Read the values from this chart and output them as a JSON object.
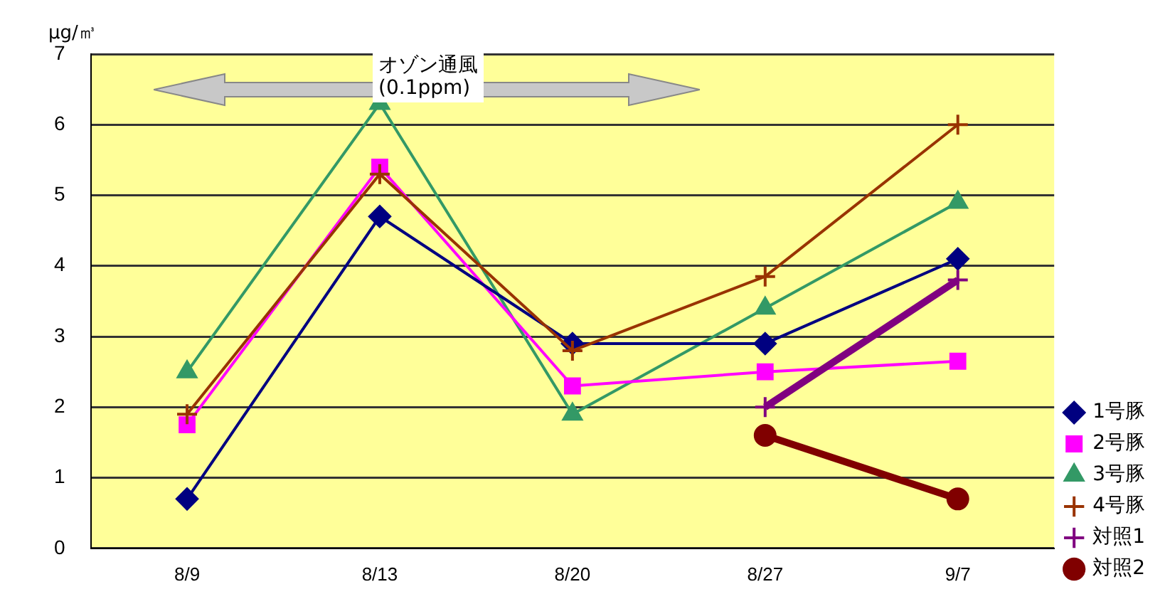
{
  "chart_data": {
    "type": "line",
    "ylabel": "μg/㎥",
    "annotations": [
      "オゾン通風\n(0.1ppm)"
    ],
    "categories": [
      "8/9",
      "8/13",
      "8/20",
      "8/27",
      "9/7"
    ],
    "ylim": [
      0,
      7
    ],
    "yticks": [
      0,
      1,
      2,
      3,
      4,
      5,
      6,
      7
    ],
    "grid": "y",
    "legend": "right",
    "series": [
      {
        "name": "1号豚",
        "color": "#000080",
        "marker": "diamond",
        "values": [
          0.7,
          4.7,
          2.9,
          2.9,
          4.1
        ]
      },
      {
        "name": "2号豚",
        "color": "#ff00ff",
        "marker": "square",
        "values": [
          1.75,
          5.4,
          2.3,
          2.5,
          2.65
        ]
      },
      {
        "name": "3号豚",
        "color": "#339966",
        "marker": "triangle",
        "values": [
          2.5,
          6.3,
          1.9,
          3.4,
          4.9
        ]
      },
      {
        "name": "4号豚",
        "color": "#993300",
        "marker": "cross",
        "values": [
          1.9,
          5.3,
          2.8,
          3.85,
          6.0
        ]
      },
      {
        "name": "対照1",
        "color": "#800080",
        "marker": "cross",
        "values": [
          null,
          null,
          null,
          2.0,
          3.8
        ]
      },
      {
        "name": "対照2",
        "color": "#800000",
        "marker": "circle",
        "values": [
          null,
          null,
          null,
          1.6,
          0.7
        ]
      }
    ]
  }
}
